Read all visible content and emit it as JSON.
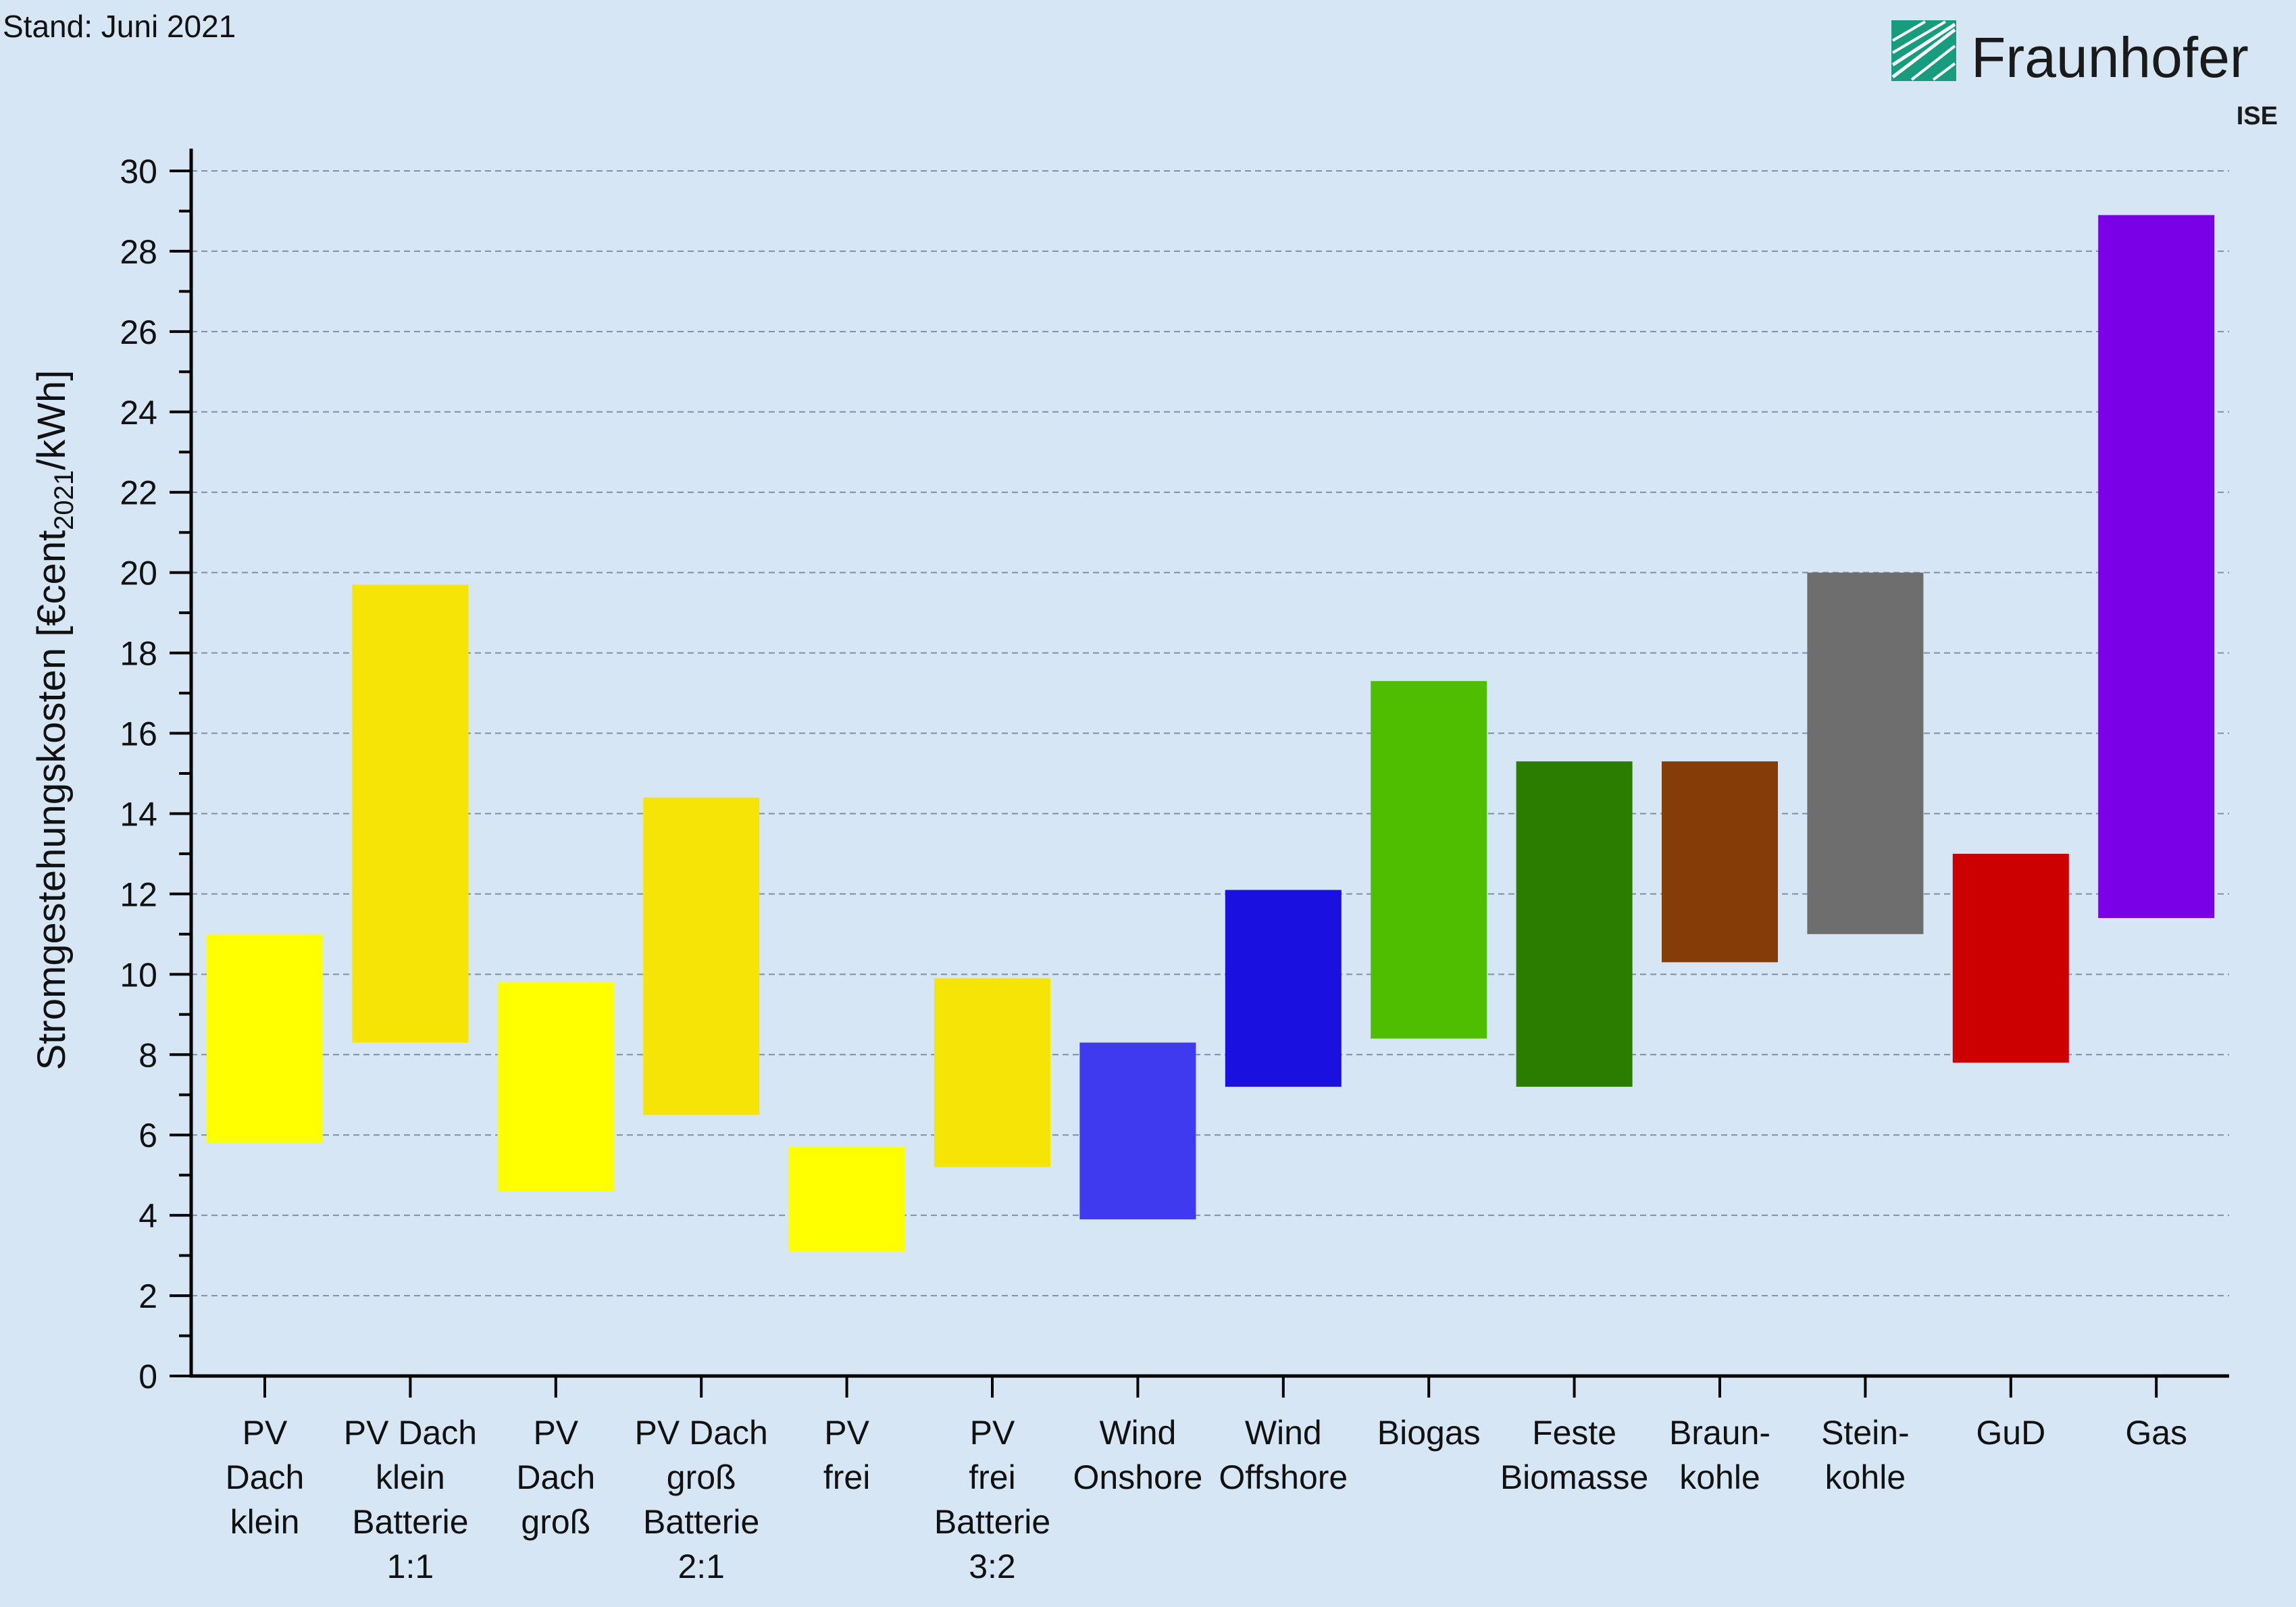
{
  "header": {
    "stand": "Stand: Juni 2021",
    "brand_name": "Fraunhofer",
    "brand_sub": "ISE",
    "brand_color": "#179c7d"
  },
  "chart_data": {
    "type": "bar",
    "subtype": "floating-range",
    "title": "",
    "ylabel": {
      "main": "Stromgestehungskosten [€cent",
      "sub": "2021",
      "tail": "/kWh]"
    },
    "ylim": [
      0,
      30
    ],
    "yticks": [
      0,
      2,
      4,
      6,
      8,
      10,
      12,
      14,
      16,
      18,
      20,
      22,
      24,
      26,
      28,
      30
    ],
    "grid": true,
    "bars": [
      {
        "label": [
          "PV",
          "Dach",
          "klein"
        ],
        "low": 5.8,
        "high": 11.0,
        "color": "#ffff00"
      },
      {
        "label": [
          "PV Dach",
          "klein",
          "Batterie",
          "1:1"
        ],
        "low": 8.3,
        "high": 19.7,
        "color": "#f5e406"
      },
      {
        "label": [
          "PV",
          "Dach",
          "groß"
        ],
        "low": 4.6,
        "high": 9.8,
        "color": "#ffff00"
      },
      {
        "label": [
          "PV Dach",
          "groß",
          "Batterie",
          "2:1"
        ],
        "low": 6.5,
        "high": 14.4,
        "color": "#f5e406"
      },
      {
        "label": [
          "PV",
          "frei"
        ],
        "low": 3.1,
        "high": 5.7,
        "color": "#ffff00"
      },
      {
        "label": [
          "PV",
          "frei",
          "Batterie",
          "3:2"
        ],
        "low": 5.2,
        "high": 9.9,
        "color": "#f5e406"
      },
      {
        "label": [
          "Wind",
          "Onshore"
        ],
        "low": 3.9,
        "high": 8.3,
        "color": "#3f3af0"
      },
      {
        "label": [
          "Wind",
          "Offshore"
        ],
        "low": 7.2,
        "high": 12.1,
        "color": "#1a10e0"
      },
      {
        "label": [
          "Biogas"
        ],
        "low": 8.4,
        "high": 17.3,
        "color": "#4fbd00"
      },
      {
        "label": [
          "Feste",
          "Biomasse"
        ],
        "low": 7.2,
        "high": 15.3,
        "color": "#2b7d00"
      },
      {
        "label": [
          "Braun-",
          "kohle"
        ],
        "low": 10.3,
        "high": 15.3,
        "color": "#853c06"
      },
      {
        "label": [
          "Stein-",
          "kohle"
        ],
        "low": 11.0,
        "high": 20.0,
        "color": "#6e6e6e"
      },
      {
        "label": [
          "GuD"
        ],
        "low": 7.8,
        "high": 13.0,
        "color": "#cc0000"
      },
      {
        "label": [
          "Gas"
        ],
        "low": 11.4,
        "high": 28.9,
        "color": "#7a00e6"
      }
    ]
  }
}
